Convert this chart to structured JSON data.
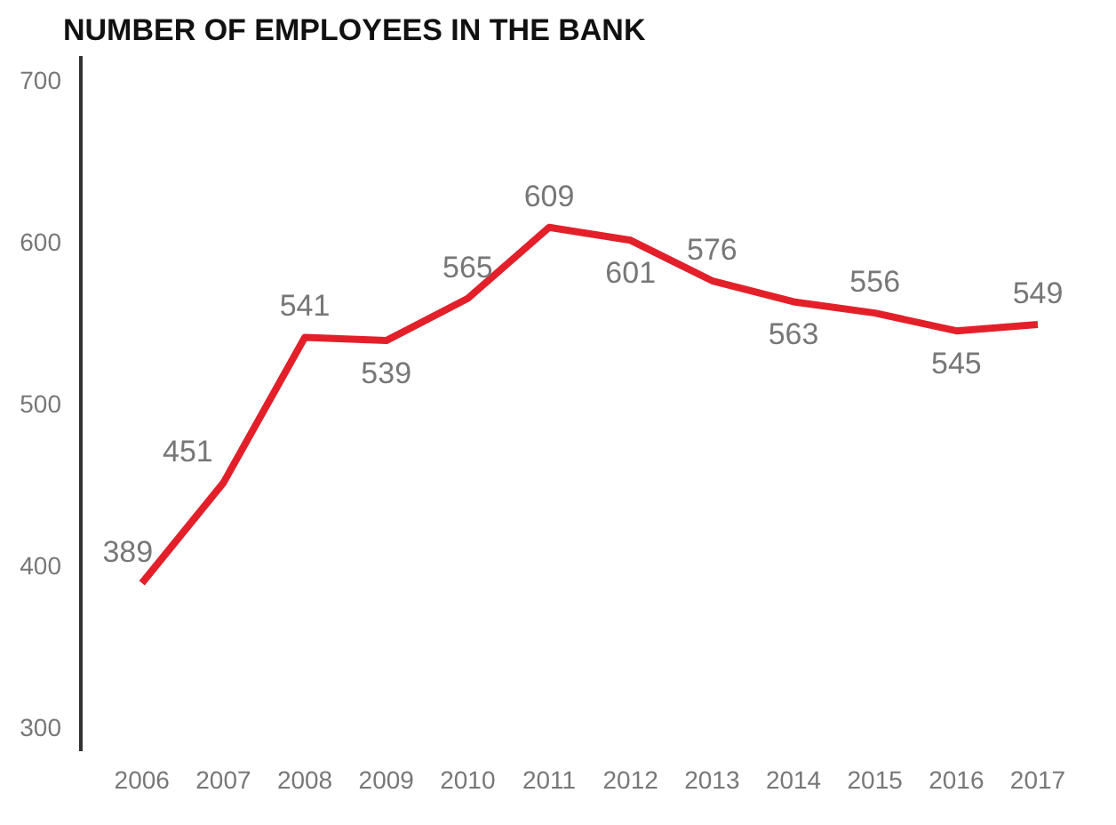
{
  "chart_data": {
    "type": "line",
    "title": "NUMBER OF EMPLOYEES IN THE BANK",
    "categories": [
      "2006",
      "2007",
      "2008",
      "2009",
      "2010",
      "2011",
      "2012",
      "2013",
      "2014",
      "2015",
      "2016",
      "2017"
    ],
    "series": [
      {
        "color": "#e3202a",
        "values": [
          389,
          451,
          541,
          539,
          565,
          609,
          601,
          576,
          563,
          556,
          545,
          549
        ]
      }
    ],
    "ylim": [
      285,
      715
    ],
    "yticks": [
      300,
      400,
      500,
      600,
      700
    ],
    "grid": false,
    "data_labels": true,
    "marker": "none",
    "line_style": "solid"
  }
}
